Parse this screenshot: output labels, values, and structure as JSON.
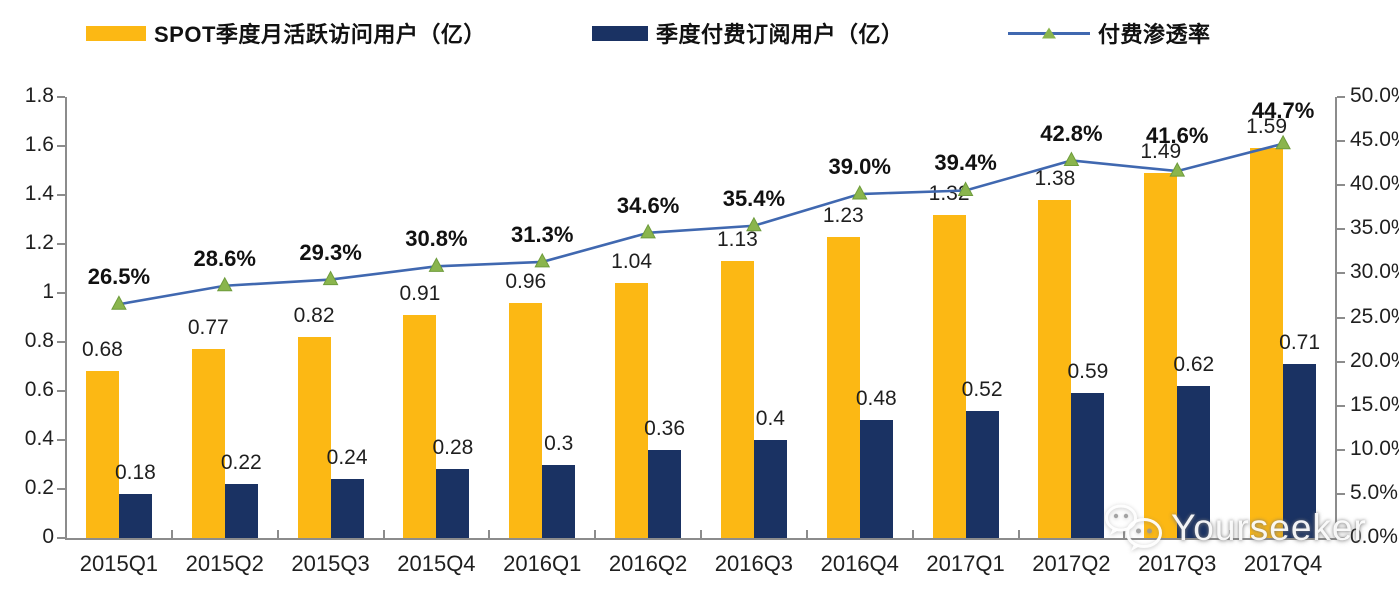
{
  "legend": {
    "items": [
      {
        "label": "SPOT季度月活跃访问用户（亿）",
        "swatch": "bar",
        "color": "#FCB814"
      },
      {
        "label": "季度付费订阅用户（亿）",
        "swatch": "bar",
        "color": "#1A3263"
      },
      {
        "label": "付费渗透率",
        "swatch": "line",
        "color": "#4068B0",
        "marker_color": "#8AB54D"
      }
    ]
  },
  "chart_data": {
    "type": "bar",
    "subtype": "grouped bars with secondary-axis line",
    "categories": [
      "2015Q1",
      "2015Q2",
      "2015Q3",
      "2015Q4",
      "2016Q1",
      "2016Q2",
      "2016Q3",
      "2016Q4",
      "2017Q1",
      "2017Q2",
      "2017Q3",
      "2017Q4"
    ],
    "series": [
      {
        "name": "SPOT季度月活跃访问用户（亿）",
        "type": "bar",
        "axis": "left",
        "color": "#FCB814",
        "values": [
          0.68,
          0.77,
          0.82,
          0.91,
          0.96,
          1.04,
          1.13,
          1.23,
          1.32,
          1.38,
          1.49,
          1.59
        ],
        "labels": [
          "0.68",
          "0.77",
          "0.82",
          "0.91",
          "0.96",
          "1.04",
          "1.13",
          "1.23",
          "1.32",
          "1.38",
          "1.49",
          "1.59"
        ]
      },
      {
        "name": "季度付费订阅用户（亿）",
        "type": "bar",
        "axis": "left",
        "color": "#1A3263",
        "values": [
          0.18,
          0.22,
          0.24,
          0.28,
          0.3,
          0.36,
          0.4,
          0.48,
          0.52,
          0.59,
          0.62,
          0.71
        ],
        "labels": [
          "0.18",
          "0.22",
          "0.24",
          "0.28",
          "0.3",
          "0.36",
          "0.4",
          "0.48",
          "0.52",
          "0.59",
          "0.62",
          "0.71"
        ]
      },
      {
        "name": "付费渗透率",
        "type": "line",
        "axis": "right",
        "color": "#4068B0",
        "marker": "triangle-up",
        "marker_color": "#8AB54D",
        "values": [
          26.5,
          28.6,
          29.3,
          30.8,
          31.3,
          34.6,
          35.4,
          39.0,
          39.4,
          42.8,
          41.6,
          44.7
        ],
        "labels": [
          "26.5%",
          "28.6%",
          "29.3%",
          "30.8%",
          "31.3%",
          "34.6%",
          "35.4%",
          "39.0%",
          "39.4%",
          "42.8%",
          "41.6%",
          "44.7%"
        ]
      }
    ],
    "left_axis": {
      "min": 0,
      "max": 1.8,
      "tick_labels": [
        "0",
        "0.2",
        "0.4",
        "0.6",
        "0.8",
        "1",
        "1.2",
        "1.4",
        "1.6",
        "1.8"
      ]
    },
    "right_axis": {
      "min": 0,
      "max": 50,
      "tick_labels": [
        "0.0%",
        "5.0%",
        "10.0%",
        "15.0%",
        "20.0%",
        "25.0%",
        "30.0%",
        "35.0%",
        "40.0%",
        "45.0%",
        "50.0%"
      ]
    },
    "grid": false,
    "legend_position": "top"
  },
  "watermark": {
    "text": "Yourseeker",
    "icon": "wechat-icon"
  }
}
